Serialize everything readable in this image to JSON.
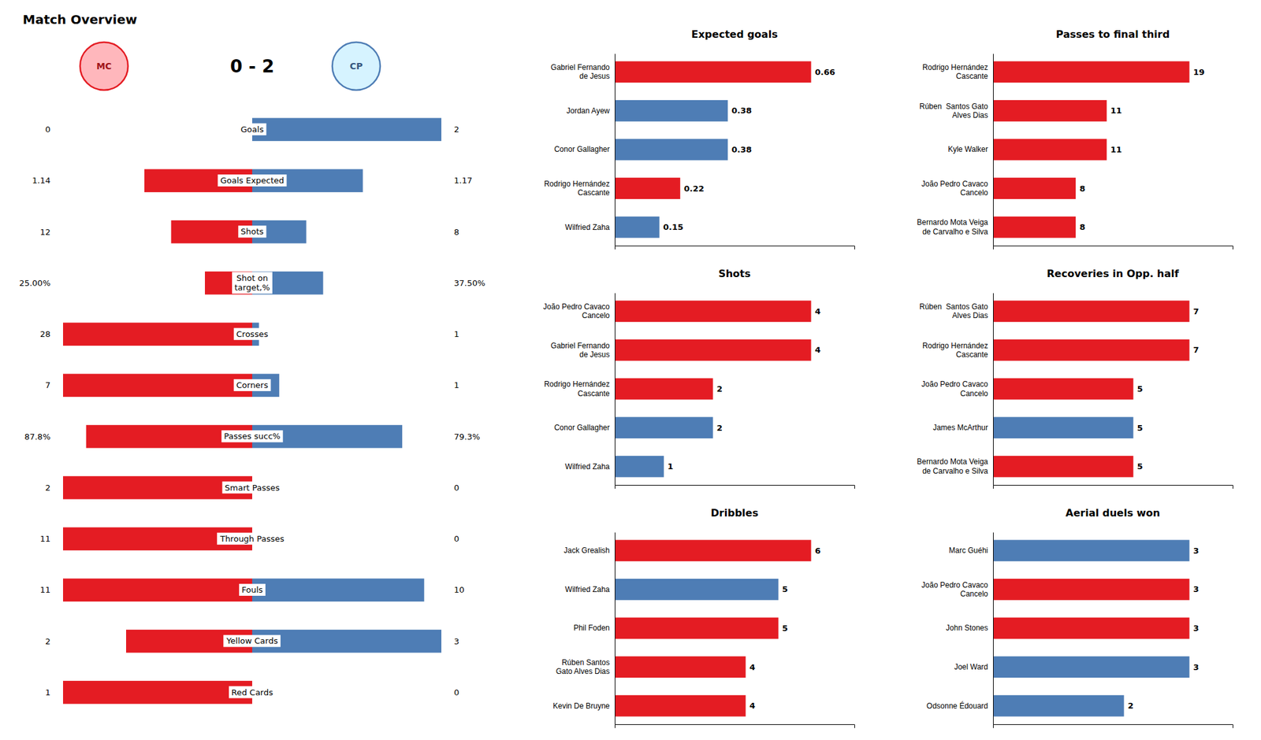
{
  "chart_data": [
    {
      "type": "bar",
      "orientation": "horizontal",
      "title": "Match Overview",
      "annotations": [
        "0 - 2"
      ],
      "categories": [
        "Goals",
        "Goals Expected",
        "Shots",
        "Shot on\ntarget,%",
        "Crosses",
        "Corners",
        "Passes succ%",
        "Smart Passes",
        "Through Passes",
        "Fouls",
        "Yellow Cards",
        "Red Cards"
      ],
      "scale_max": [
        2,
        2,
        28,
        100,
        28,
        7,
        100,
        2,
        11,
        11,
        3,
        1
      ],
      "data_labels": true,
      "series": [
        {
          "name": "MC",
          "color": "#e41c23",
          "values": [
            0,
            1.14,
            12,
            25.0,
            28,
            7,
            87.8,
            2,
            11,
            11,
            2,
            1
          ],
          "value_labels": [
            "0",
            "1.14",
            "12",
            "25.00%",
            "28",
            "7",
            "87.8%",
            "2",
            "11",
            "11",
            "2",
            "1"
          ]
        },
        {
          "name": "CP",
          "color": "#4e7db5",
          "values": [
            2,
            1.17,
            8,
            37.5,
            1,
            1,
            79.3,
            0,
            0,
            10,
            3,
            0
          ],
          "value_labels": [
            "2",
            "1.17",
            "8",
            "37.50%",
            "1",
            "1",
            "79.3%",
            "0",
            "0",
            "10",
            "3",
            "0"
          ]
        }
      ]
    },
    {
      "type": "bar",
      "orientation": "horizontal",
      "title": "Expected goals",
      "categories": [
        "Gabriel Fernando\nde Jesus",
        "Jordan Ayew",
        "Conor Gallagher",
        "Rodrigo Hernández\nCascante",
        "Wilfried Zaha"
      ],
      "values": [
        0.66,
        0.38,
        0.38,
        0.22,
        0.15
      ],
      "colors": [
        "#e41c23",
        "#4e7db5",
        "#4e7db5",
        "#e41c23",
        "#4e7db5"
      ],
      "xlim": [
        0,
        0.8052
      ],
      "data_labels": true,
      "tick_labels": "y"
    },
    {
      "type": "bar",
      "orientation": "horizontal",
      "title": "Shots",
      "categories": [
        "João Pedro Cavaco\nCancelo",
        "Gabriel Fernando\nde Jesus",
        "Rodrigo Hernández\nCascante",
        "Conor Gallagher",
        "Wilfried Zaha"
      ],
      "values": [
        4,
        4,
        2,
        2,
        1
      ],
      "colors": [
        "#e41c23",
        "#e41c23",
        "#e41c23",
        "#4e7db5",
        "#4e7db5"
      ],
      "xlim": [
        0,
        4.88
      ],
      "data_labels": true,
      "tick_labels": "y"
    },
    {
      "type": "bar",
      "orientation": "horizontal",
      "title": "Dribbles",
      "categories": [
        "Jack Grealish",
        "Wilfried Zaha",
        "Phil Foden",
        "Rúben Santos\nGato Alves Dias",
        "Kevin De Bruyne"
      ],
      "values": [
        6,
        5,
        5,
        4,
        4
      ],
      "colors": [
        "#e41c23",
        "#4e7db5",
        "#e41c23",
        "#e41c23",
        "#e41c23"
      ],
      "xlim": [
        0,
        7.32
      ],
      "data_labels": true,
      "tick_labels": "y"
    },
    {
      "type": "bar",
      "orientation": "horizontal",
      "title": "Passes to final third",
      "categories": [
        "Rodrigo Hernández\nCascante",
        "Rúben  Santos Gato\nAlves Dias",
        "Kyle Walker",
        "João Pedro Cavaco\nCancelo",
        "Bernardo Mota Veiga\nde Carvalho e Silva"
      ],
      "values": [
        19,
        11,
        11,
        8,
        8
      ],
      "colors": [
        "#e41c23",
        "#e41c23",
        "#e41c23",
        "#e41c23",
        "#e41c23"
      ],
      "xlim": [
        0,
        23.18
      ],
      "data_labels": true,
      "tick_labels": "y"
    },
    {
      "type": "bar",
      "orientation": "horizontal",
      "title": "Recoveries in Opp. half",
      "categories": [
        "Rúben  Santos Gato\nAlves Dias",
        "Rodrigo Hernández\nCascante",
        "João Pedro Cavaco\nCancelo",
        "James McArthur",
        "Bernardo Mota Veiga\nde Carvalho e Silva"
      ],
      "values": [
        7,
        7,
        5,
        5,
        5
      ],
      "colors": [
        "#e41c23",
        "#e41c23",
        "#e41c23",
        "#4e7db5",
        "#e41c23"
      ],
      "xlim": [
        0,
        8.54
      ],
      "data_labels": true,
      "tick_labels": "y"
    },
    {
      "type": "bar",
      "orientation": "horizontal",
      "title": "Aerial duels won",
      "categories": [
        "Marc Guéhi",
        "João Pedro Cavaco\nCancelo",
        "John Stones",
        "Joel Ward",
        "Odsonne Édouard"
      ],
      "values": [
        3,
        3,
        3,
        3,
        2
      ],
      "colors": [
        "#4e7db5",
        "#e41c23",
        "#e41c23",
        "#4e7db5",
        "#4e7db5"
      ],
      "xlim": [
        0,
        3.66
      ],
      "data_labels": true,
      "tick_labels": "y"
    }
  ]
}
